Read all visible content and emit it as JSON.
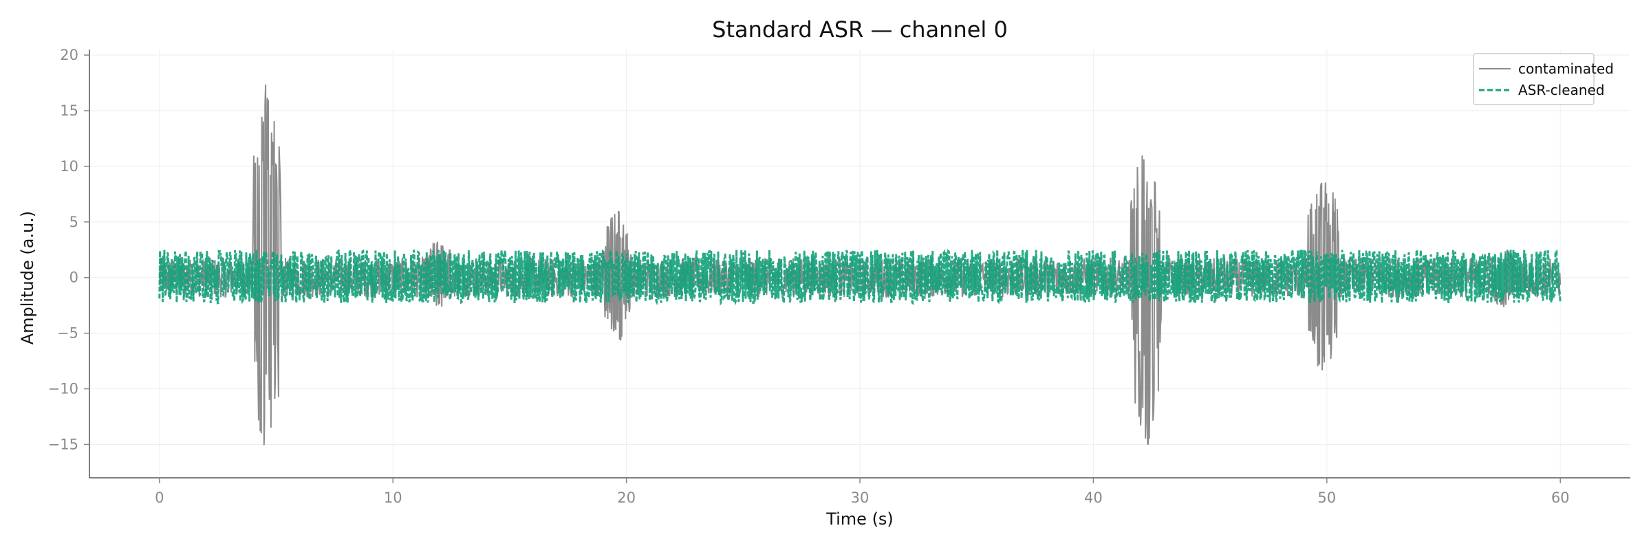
{
  "chart_data": {
    "type": "line",
    "title": "Standard ASR — channel 0",
    "xlabel": "Time (s)",
    "ylabel": "Amplitude (a.u.)",
    "xlim": [
      -3,
      63
    ],
    "ylim": [
      -18,
      20.5
    ],
    "xticks": [
      0,
      10,
      20,
      30,
      40,
      50,
      60
    ],
    "yticks": [
      -15,
      -10,
      -5,
      0,
      5,
      10,
      15,
      20
    ],
    "xtick_labels": [
      "0",
      "10",
      "20",
      "30",
      "40",
      "50",
      "60"
    ],
    "ytick_labels": [
      "−15",
      "−10",
      "−5",
      "0",
      "5",
      "10",
      "15",
      "20"
    ],
    "grid": true,
    "legend_position": "top-right",
    "series": [
      {
        "name": "contaminated",
        "color": "#8c8c8c",
        "style": "solid",
        "baseline_amplitude": 2.0,
        "artifact_bursts": [
          {
            "start": 4.0,
            "end": 5.2,
            "max": 18.7,
            "min": -16.3
          },
          {
            "start": 11.4,
            "end": 12.6,
            "max": 3.5,
            "min": -2.8
          },
          {
            "start": 19.0,
            "end": 20.2,
            "max": 6.3,
            "min": -6.0
          },
          {
            "start": 41.6,
            "end": 42.9,
            "max": 12.0,
            "min": -15.5
          },
          {
            "start": 49.2,
            "end": 50.5,
            "max": 10.4,
            "min": -8.8
          },
          {
            "start": 57.0,
            "end": 58.0,
            "max": 3.2,
            "min": -2.7
          }
        ]
      },
      {
        "name": "ASR-cleaned",
        "color": "#17a37d",
        "style": "dashed",
        "amplitude_max": 2.5,
        "amplitude_min": -2.3
      }
    ],
    "x_range": [
      0,
      60
    ]
  }
}
